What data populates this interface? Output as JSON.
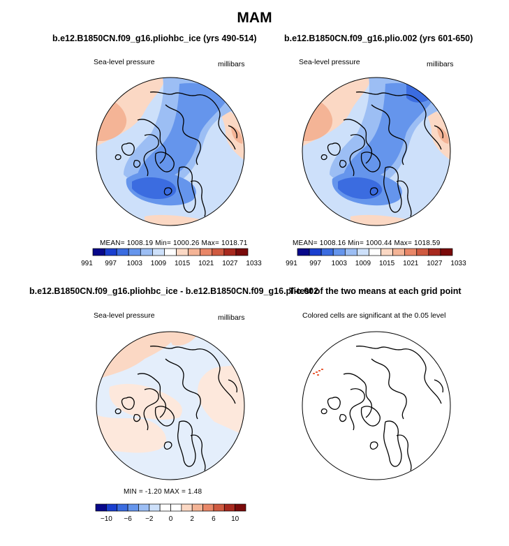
{
  "title": "MAM",
  "panels": [
    {
      "title": "b.e12.B1850CN.f09_g16.pliohbc_ice (yrs 490-514)",
      "left_label": "Sea-level pressure",
      "right_label": "millibars",
      "stats": "MEAN= 1008.19   Min= 1000.26   Max= 1018.71",
      "palette": "slp"
    },
    {
      "title": "b.e12.B1850CN.f09_g16.plio.002 (yrs 601-650)",
      "left_label": "Sea-level pressure",
      "right_label": "millibars",
      "stats": "MEAN= 1008.16   Min= 1000.44   Max= 1018.59",
      "palette": "slp"
    },
    {
      "title": "b.e12.B1850CN.f09_g16.pliohbc_ice - b.e12.B1850CN.f09_g16.plio.002",
      "left_label": "Sea-level pressure",
      "right_label": "millibars",
      "stats": "MIN =   -1.20  MAX =    1.48",
      "palette": "diff"
    },
    {
      "title": "T-test of the two means at each grid point",
      "left_label": "Colored cells are significant at the 0.05 level",
      "palette": "none"
    }
  ],
  "colorbars": {
    "slp": {
      "colors": [
        "#08088a",
        "#1a3fcf",
        "#3b6ce0",
        "#6595ec",
        "#9cbef4",
        "#cde0fa",
        "#ffffff",
        "#fbd8c4",
        "#f4b496",
        "#e98768",
        "#cf5a40",
        "#a8291e",
        "#7a0a0a"
      ],
      "labels": [
        "991",
        "997",
        "1003",
        "1009",
        "1015",
        "1021",
        "1027",
        "1033"
      ]
    },
    "diff": {
      "colors": [
        "#08088a",
        "#1a3fcf",
        "#3b6ce0",
        "#6595ec",
        "#9cbef4",
        "#cde0fa",
        "#ffffff",
        "#ffffff",
        "#fbd8c4",
        "#f4b496",
        "#e98768",
        "#cf5a40",
        "#a8291e",
        "#7a0a0a"
      ],
      "labels": [
        "−10",
        "−6",
        "−2",
        "0",
        "2",
        "6",
        "10"
      ]
    }
  },
  "chart_data": [
    {
      "type": "heatmap",
      "title": "b.e12.B1850CN.f09_g16.pliohbc_ice (yrs 490-514)",
      "field": "Sea-level pressure",
      "units": "millibars",
      "projection": "north polar stereographic",
      "mean": 1008.19,
      "min": 1000.26,
      "max": 1018.71,
      "contour_levels": [
        991,
        994,
        997,
        1000,
        1003,
        1006,
        1009,
        1012,
        1015,
        1018,
        1021,
        1024,
        1027,
        1030,
        1033
      ]
    },
    {
      "type": "heatmap",
      "title": "b.e12.B1850CN.f09_g16.plio.002 (yrs 601-650)",
      "field": "Sea-level pressure",
      "units": "millibars",
      "projection": "north polar stereographic",
      "mean": 1008.16,
      "min": 1000.44,
      "max": 1018.59,
      "contour_levels": [
        991,
        994,
        997,
        1000,
        1003,
        1006,
        1009,
        1012,
        1015,
        1018,
        1021,
        1024,
        1027,
        1030,
        1033
      ]
    },
    {
      "type": "heatmap",
      "title": "b.e12.B1850CN.f09_g16.pliohbc_ice - b.e12.B1850CN.f09_g16.plio.002",
      "field": "Sea-level pressure difference",
      "units": "millibars",
      "min": -1.2,
      "max": 1.48,
      "contour_levels": [
        -10,
        -8,
        -6,
        -4,
        -2,
        -1,
        0,
        1,
        2,
        4,
        6,
        8,
        10
      ]
    },
    {
      "type": "heatmap",
      "title": "T-test of the two means at each grid point",
      "note": "Colored cells are significant at the 0.05 level",
      "significance_level": 0.05
    }
  ]
}
